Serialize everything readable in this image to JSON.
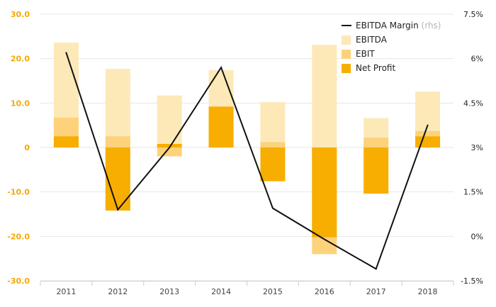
{
  "chart_data": {
    "type": "bar",
    "categories": [
      "2011",
      "2012",
      "2013",
      "2014",
      "2015",
      "2016",
      "2017",
      "2018"
    ],
    "series": [
      {
        "name": "EBITDA",
        "values": [
          23.6,
          17.7,
          11.7,
          17.4,
          10.2,
          23.1,
          6.6,
          12.6
        ],
        "color": "#fde9b8"
      },
      {
        "name": "EBIT",
        "values": [
          6.7,
          2.5,
          -2.0,
          9.0,
          1.2,
          -24.0,
          2.2,
          3.7
        ],
        "color": "#fdd27a"
      },
      {
        "name": "Net Profit",
        "values": [
          2.5,
          -14.2,
          0.8,
          9.2,
          -7.6,
          -20.2,
          -10.4,
          2.5
        ],
        "color": "#f7ae00"
      }
    ],
    "line_series": {
      "name": "EBITDA Margin",
      "name_suffix": "(rhs)",
      "values": [
        6.2,
        0.9,
        3.0,
        5.7,
        0.95,
        -0.1,
        -1.1,
        3.75
      ],
      "color": "#111111"
    },
    "ylim": [
      -30,
      30
    ],
    "y_ticks": [
      "30.0",
      "20.0",
      "10.0",
      "0",
      "-10.0",
      "-20.0",
      "-30.0"
    ],
    "y2lim": [
      -1.5,
      7.5
    ],
    "y2_ticks": [
      "7.5%",
      "6%",
      "4.5%",
      "3%",
      "1.5%",
      "0%",
      "-1.5%"
    ],
    "grid": true,
    "legend_position": "top-right"
  }
}
